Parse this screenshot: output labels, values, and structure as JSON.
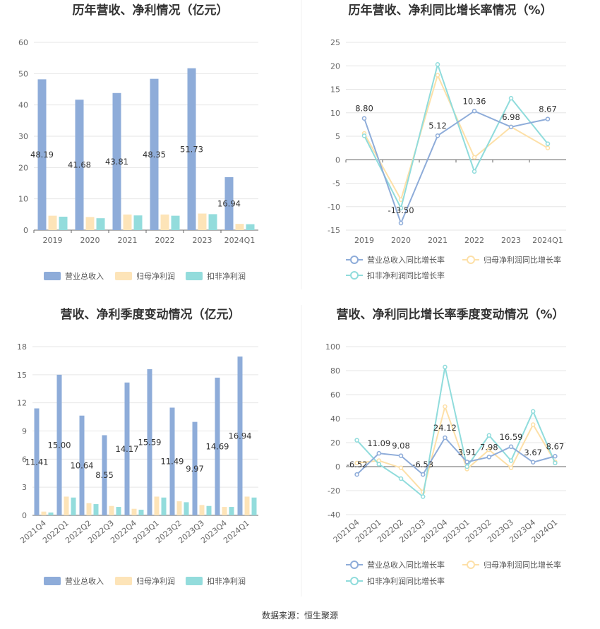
{
  "colors": {
    "revenue": "#8eacd9",
    "netprofit": "#fde4b8",
    "deducted": "#93dcdc",
    "line_revenue": "#8eacd9",
    "line_netprofit": "#fde0a8",
    "line_deducted": "#90dcdc"
  },
  "source_text": "数据来源：恒生聚源",
  "chart_data": [
    {
      "id": "c1",
      "type": "bar",
      "title": "历年营收、净利情况（亿元）",
      "categories": [
        "2019",
        "2020",
        "2021",
        "2022",
        "2023",
        "2024Q1"
      ],
      "ylim": [
        0,
        60
      ],
      "yticks": [
        0,
        10,
        20,
        30,
        40,
        50,
        60
      ],
      "series": [
        {
          "name": "营业总收入",
          "values": [
            48.19,
            41.68,
            43.81,
            48.35,
            51.73,
            16.94
          ],
          "labels": [
            "48.19",
            "41.68",
            "43.81",
            "48.35",
            "51.73",
            "16.94"
          ]
        },
        {
          "name": "归母净利润",
          "values": [
            4.6,
            4.2,
            5.0,
            5.0,
            5.3,
            2.0
          ]
        },
        {
          "name": "扣非净利润",
          "values": [
            4.3,
            3.8,
            4.7,
            4.6,
            5.1,
            1.9
          ]
        }
      ],
      "legend": "bottom"
    },
    {
      "id": "c2",
      "type": "line",
      "title": "历年营收、净利同比增长率情况（%）",
      "categories": [
        "2019",
        "2020",
        "2021",
        "2022",
        "2023",
        "2024Q1"
      ],
      "ylim": [
        -15,
        25
      ],
      "yticks": [
        -15,
        -10,
        -5,
        0,
        5,
        10,
        15,
        20,
        25
      ],
      "series": [
        {
          "name": "营业总收入同比增长率",
          "values": [
            8.8,
            -13.5,
            5.12,
            10.36,
            6.98,
            8.67
          ],
          "labels": [
            "8.80",
            "-13.50",
            "5.12",
            "10.36",
            "6.98",
            "8.67"
          ]
        },
        {
          "name": "归母净利润同比增长率",
          "values": [
            5.6,
            -8.5,
            18.0,
            0.5,
            7.0,
            2.5
          ]
        },
        {
          "name": "扣非净利润同比增长率",
          "values": [
            5.1,
            -10.3,
            20.3,
            -2.5,
            13.1,
            3.4
          ]
        }
      ],
      "legend": "bottom"
    },
    {
      "id": "c3",
      "type": "bar",
      "title": "营收、净利季度变动情况（亿元）",
      "categories": [
        "2021Q4",
        "2022Q1",
        "2022Q2",
        "2022Q3",
        "2022Q4",
        "2023Q1",
        "2023Q2",
        "2023Q3",
        "2023Q4",
        "2024Q1"
      ],
      "ylim": [
        0,
        18
      ],
      "yticks": [
        0,
        3,
        6,
        9,
        12,
        15,
        18
      ],
      "series": [
        {
          "name": "营业总收入",
          "values": [
            11.41,
            15.0,
            10.64,
            8.55,
            14.17,
            15.59,
            11.49,
            9.97,
            14.69,
            16.94
          ],
          "labels": [
            "11.41",
            "15.00",
            "10.64",
            "8.55",
            "14.17",
            "15.59",
            "11.49",
            "9.97",
            "14.69",
            "16.94"
          ]
        },
        {
          "name": "归母净利润",
          "values": [
            0.4,
            2.0,
            1.3,
            1.0,
            0.7,
            2.0,
            1.5,
            1.1,
            0.9,
            2.0
          ]
        },
        {
          "name": "扣非净利润",
          "values": [
            0.3,
            1.9,
            1.2,
            0.9,
            0.6,
            1.9,
            1.4,
            1.0,
            0.9,
            1.9
          ]
        }
      ],
      "legend": "bottom"
    },
    {
      "id": "c4",
      "type": "line",
      "title": "营收、净利同比增长率季度变动情况（%）",
      "categories": [
        "2021Q4",
        "2022Q1",
        "2022Q2",
        "2022Q3",
        "2022Q4",
        "2023Q1",
        "2023Q2",
        "2023Q3",
        "2023Q4",
        "2024Q1"
      ],
      "ylim": [
        -40,
        100
      ],
      "yticks": [
        -40,
        -20,
        0,
        20,
        40,
        60,
        80,
        100
      ],
      "series": [
        {
          "name": "营业总收入同比增长率",
          "values": [
            -6.52,
            11.09,
            9.08,
            -6.53,
            24.12,
            3.91,
            7.98,
            16.59,
            3.67,
            8.67
          ],
          "labels": [
            "-6.52",
            "11.09",
            "9.08",
            "-6.53",
            "24.12",
            "3.91",
            "7.98",
            "16.59",
            "3.67",
            "8.67"
          ]
        },
        {
          "name": "归母净利润同比增长率",
          "values": [
            3,
            5,
            -1,
            -21,
            50,
            -2,
            14,
            -1,
            35,
            4
          ]
        },
        {
          "name": "扣非净利润同比增长率",
          "values": [
            22,
            2,
            -10,
            -25,
            83,
            0,
            26,
            5,
            46,
            3
          ]
        }
      ],
      "legend": "bottom"
    }
  ]
}
